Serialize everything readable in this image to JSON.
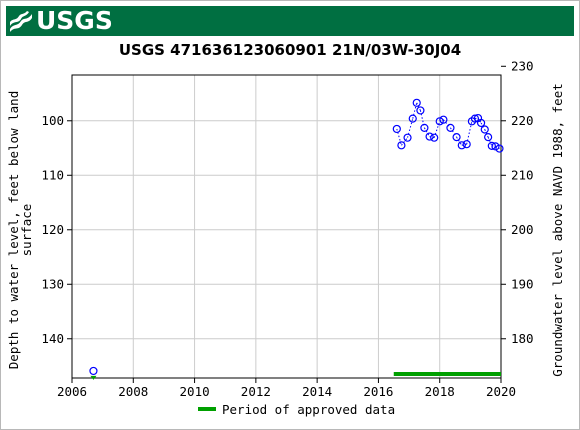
{
  "header": {
    "logo_text": "USGS",
    "banner_color": "#006f41"
  },
  "chart_data": {
    "type": "scatter",
    "title": "USGS 471636123060901 21N/03W-30J04",
    "ylabel_left_line1": "Depth to water level, feet below land",
    "ylabel_left_line2": "surface",
    "ylabel_right": "Groundwater level above NAVD 1988, feet",
    "x_ticks": [
      "2006",
      "2008",
      "2010",
      "2012",
      "2014",
      "2016",
      "2018",
      "2020"
    ],
    "y_ticks_left": [
      "100",
      "110",
      "120",
      "130",
      "140"
    ],
    "y_ticks_right": [
      "180",
      "190",
      "200",
      "210",
      "220",
      "230"
    ],
    "xlim": [
      2006,
      2020
    ],
    "ylim_left": [
      147.2,
      91.6
    ],
    "right_axis_offset": 320,
    "grid": true,
    "series": [
      {
        "marker": "open-circle",
        "color": "#0000ff",
        "connector": "dotted",
        "points": [
          {
            "x": 2006.7,
            "y": 145.9
          },
          {
            "x": 2016.6,
            "y": 101.5
          },
          {
            "x": 2016.75,
            "y": 104.5
          },
          {
            "x": 2016.95,
            "y": 103.1
          },
          {
            "x": 2017.12,
            "y": 99.6
          },
          {
            "x": 2017.25,
            "y": 96.7
          },
          {
            "x": 2017.37,
            "y": 98.1
          },
          {
            "x": 2017.5,
            "y": 101.3
          },
          {
            "x": 2017.67,
            "y": 102.9
          },
          {
            "x": 2017.82,
            "y": 103.1
          },
          {
            "x": 2018.0,
            "y": 100.1
          },
          {
            "x": 2018.12,
            "y": 99.8
          },
          {
            "x": 2018.35,
            "y": 101.3
          },
          {
            "x": 2018.55,
            "y": 103.0
          },
          {
            "x": 2018.72,
            "y": 104.5
          },
          {
            "x": 2018.88,
            "y": 104.3
          },
          {
            "x": 2019.05,
            "y": 100.1
          },
          {
            "x": 2019.15,
            "y": 99.6
          },
          {
            "x": 2019.25,
            "y": 99.5
          },
          {
            "x": 2019.35,
            "y": 100.4
          },
          {
            "x": 2019.47,
            "y": 101.6
          },
          {
            "x": 2019.58,
            "y": 103.0
          },
          {
            "x": 2019.7,
            "y": 104.6
          },
          {
            "x": 2019.82,
            "y": 104.7
          },
          {
            "x": 2019.95,
            "y": 105.1
          }
        ]
      }
    ],
    "approved_periods": [
      {
        "start": 2016.5,
        "end": 2020.0,
        "color": "#00a000"
      }
    ],
    "legend": {
      "label": "Period of approved data",
      "placement": "bottom"
    }
  }
}
